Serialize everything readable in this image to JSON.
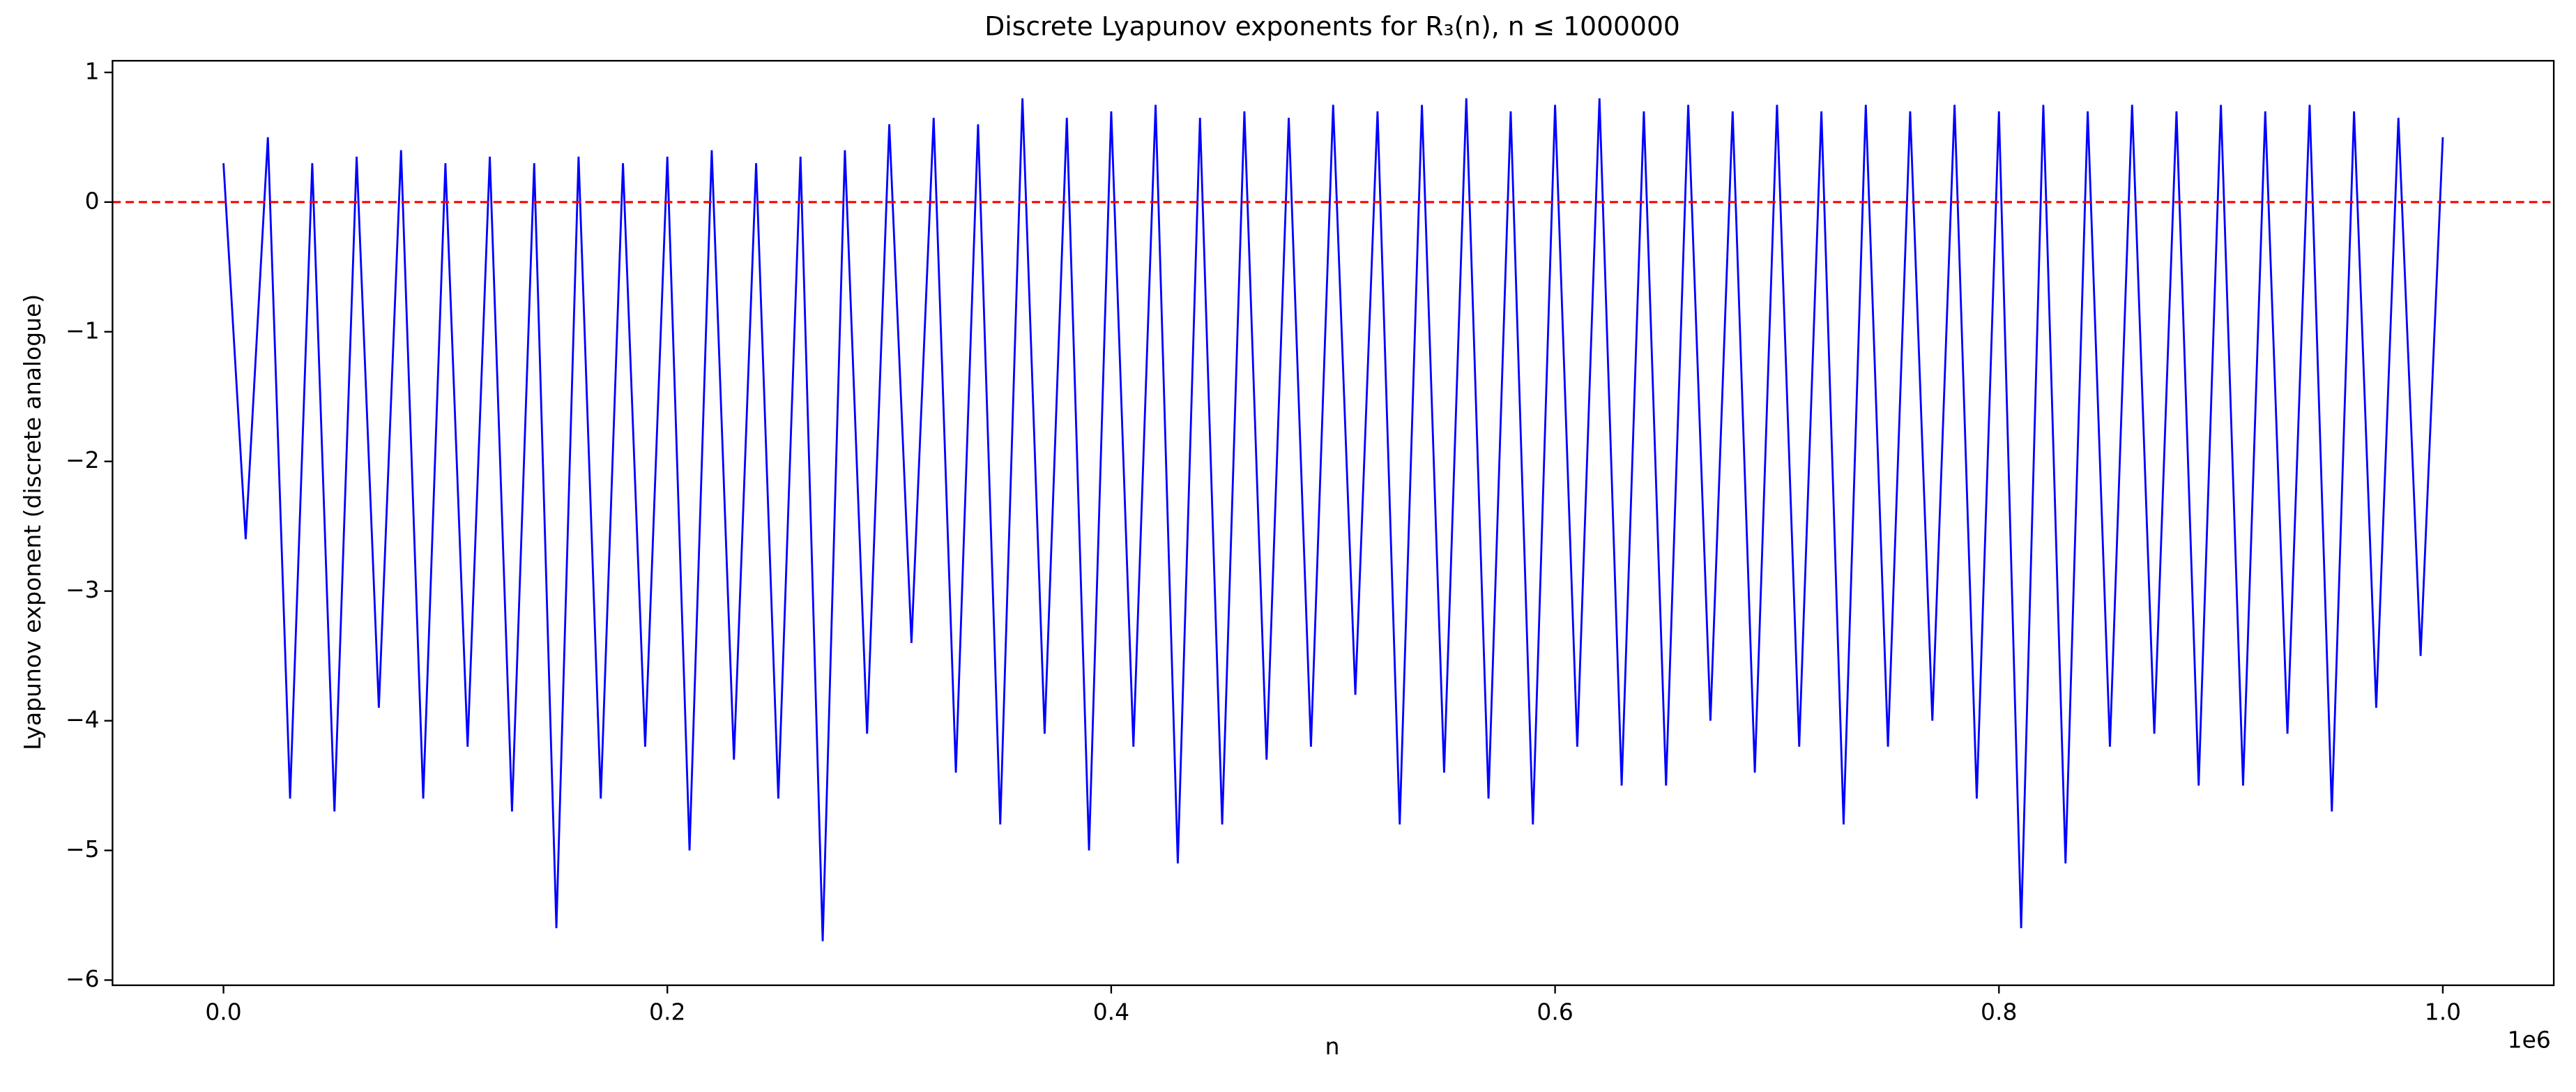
{
  "chart_data": {
    "type": "line",
    "title": "Discrete Lyapunov exponents for R₃(n), n ≤ 1000000",
    "xlabel": "n",
    "ylabel": "Lyapunov exponent (discrete analogue)",
    "x_offset_label": "1e6",
    "xlim": [
      -50000,
      1050000
    ],
    "xticks": [
      {
        "value": 0,
        "label": "0.0"
      },
      {
        "value": 200000,
        "label": "0.2"
      },
      {
        "value": 400000,
        "label": "0.4"
      },
      {
        "value": 600000,
        "label": "0.6"
      },
      {
        "value": 800000,
        "label": "0.8"
      },
      {
        "value": 1000000,
        "label": "1.0"
      }
    ],
    "ylim": [
      -6.04,
      1.09
    ],
    "yticks": [
      {
        "value": -6,
        "label": "−6"
      },
      {
        "value": -5,
        "label": "−5"
      },
      {
        "value": -4,
        "label": "−4"
      },
      {
        "value": -3,
        "label": "−3"
      },
      {
        "value": -2,
        "label": "−2"
      },
      {
        "value": -1,
        "label": "−1"
      },
      0,
      1
    ],
    "hline": {
      "value": 0,
      "color": "#ff0000"
    },
    "x": [
      0,
      10000,
      20000,
      30000,
      40000,
      50000,
      60000,
      70000,
      80000,
      90000,
      100000,
      110000,
      120000,
      130000,
      140000,
      150000,
      160000,
      170000,
      180000,
      190000,
      200000,
      210000,
      220000,
      230000,
      240000,
      250000,
      260000,
      270000,
      280000,
      290000,
      300000,
      310000,
      320000,
      330000,
      340000,
      350000,
      360000,
      370000,
      380000,
      390000,
      400000,
      410000,
      420000,
      430000,
      440000,
      450000,
      460000,
      470000,
      480000,
      490000,
      500000,
      510000,
      520000,
      530000,
      540000,
      550000,
      560000,
      570000,
      580000,
      590000,
      600000,
      610000,
      620000,
      630000,
      640000,
      650000,
      660000,
      670000,
      680000,
      690000,
      700000,
      710000,
      720000,
      730000,
      740000,
      750000,
      760000,
      770000,
      780000,
      790000,
      800000,
      810000,
      820000,
      830000,
      840000,
      850000,
      860000,
      870000,
      880000,
      890000,
      900000,
      910000,
      920000,
      930000,
      940000,
      950000,
      960000,
      970000,
      980000,
      990000,
      1000000
    ],
    "series": [
      {
        "color": "#0000ff",
        "values": [
          0.3,
          -2.6,
          0.5,
          -4.6,
          0.3,
          -4.7,
          0.35,
          -3.9,
          0.4,
          -4.6,
          0.3,
          -4.2,
          0.35,
          -4.7,
          0.3,
          -5.6,
          0.35,
          -4.6,
          0.3,
          -4.2,
          0.35,
          -5.0,
          0.4,
          -4.3,
          0.3,
          -4.6,
          0.35,
          -5.7,
          0.4,
          -4.1,
          0.6,
          -3.4,
          0.65,
          -4.4,
          0.6,
          -4.8,
          0.8,
          -4.1,
          0.65,
          -5.0,
          0.7,
          -4.2,
          0.75,
          -5.1,
          0.65,
          -4.8,
          0.7,
          -4.3,
          0.65,
          -4.2,
          0.75,
          -3.8,
          0.7,
          -4.8,
          0.75,
          -4.4,
          0.8,
          -4.6,
          0.7,
          -4.8,
          0.75,
          -4.2,
          0.8,
          -4.5,
          0.7,
          -4.5,
          0.75,
          -4.0,
          0.7,
          -4.4,
          0.75,
          -4.2,
          0.7,
          -4.8,
          0.75,
          -4.2,
          0.7,
          -4.0,
          0.75,
          -4.6,
          0.7,
          -5.6,
          0.75,
          -5.1,
          0.7,
          -4.2,
          0.75,
          -4.1,
          0.7,
          -4.5,
          0.75,
          -4.5,
          0.7,
          -4.1,
          0.75,
          -4.7,
          0.7,
          -3.9,
          0.65,
          -3.5,
          0.5
        ]
      }
    ]
  }
}
